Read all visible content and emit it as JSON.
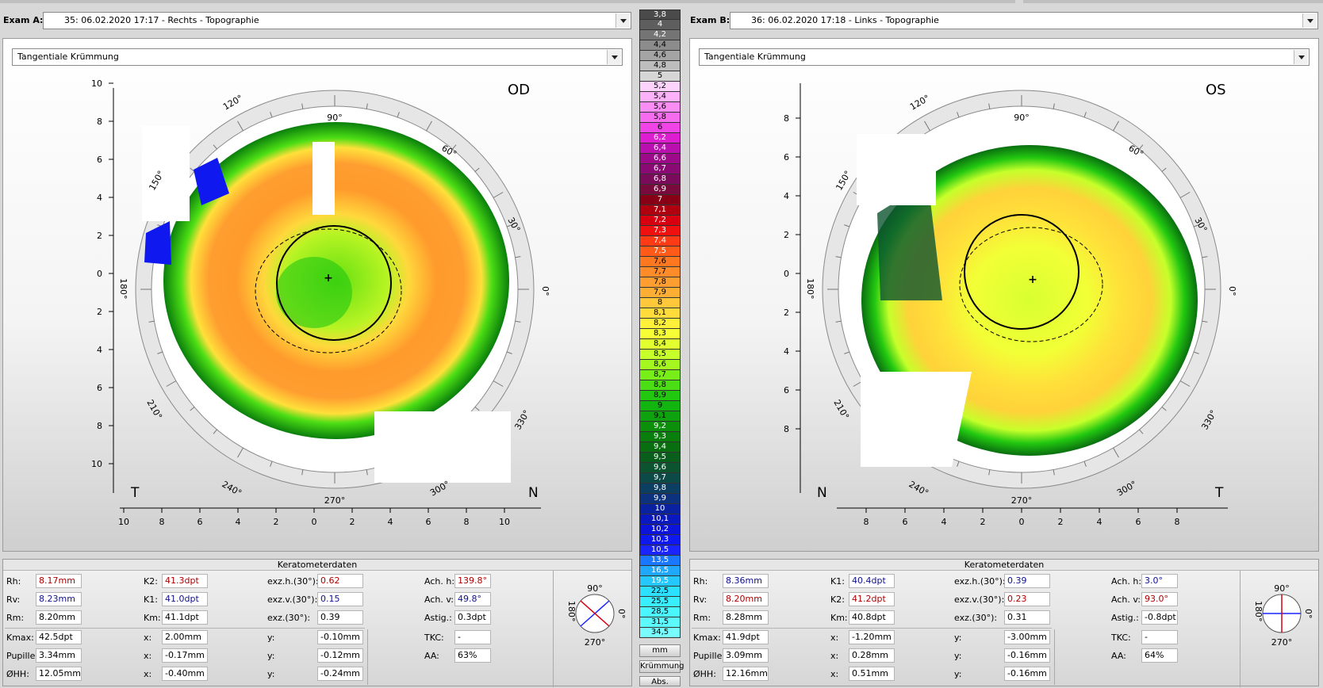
{
  "exam_a": {
    "label": "Exam A:",
    "value": "35: 06.02.2020 17:17 - Rechts - Topographie",
    "mode": "Tangentiale Krümmung",
    "eye": "OD",
    "left_corner": "T",
    "right_corner": "N",
    "y_ticks": [
      "10",
      "8",
      "6",
      "4",
      "2",
      "0",
      "2",
      "4",
      "6",
      "8",
      "10"
    ],
    "x_ticks": [
      "10",
      "8",
      "6",
      "4",
      "2",
      "0",
      "2",
      "4",
      "6",
      "8",
      "10"
    ],
    "angles": {
      "a90": "90°",
      "a60": "60°",
      "a30": "30°",
      "a0": "0°",
      "a330": "330°",
      "a300": "300°",
      "a270": "270°",
      "a240": "240°",
      "a210": "210°",
      "a180": "180°",
      "a150": "150°",
      "a120": "120°"
    }
  },
  "exam_b": {
    "label": "Exam B:",
    "value": "36: 06.02.2020 17:18 - Links - Topographie",
    "mode": "Tangentiale Krümmung",
    "eye": "OS",
    "left_corner": "N",
    "right_corner": "T",
    "y_ticks": [
      "8",
      "6",
      "4",
      "2",
      "0",
      "2",
      "4",
      "6",
      "8"
    ],
    "x_ticks": [
      "8",
      "6",
      "4",
      "2",
      "0",
      "2",
      "4",
      "6",
      "8"
    ],
    "angles": {
      "a90": "90°",
      "a60": "60°",
      "a30": "30°",
      "a0": "0°",
      "a330": "330°",
      "a300": "300°",
      "a270": "270°",
      "a240": "240°",
      "a210": "210°",
      "a180": "180°",
      "a150": "150°",
      "a120": "120°"
    }
  },
  "scale": {
    "items": [
      {
        "v": "3,8",
        "c": "#4a4a4a",
        "t": "#fff"
      },
      {
        "v": "4",
        "c": "#5e5e5e",
        "t": "#fff"
      },
      {
        "v": "4,2",
        "c": "#747474",
        "t": "#fff"
      },
      {
        "v": "4,4",
        "c": "#8c8c8c",
        "t": "#000"
      },
      {
        "v": "4,6",
        "c": "#a4a4a4",
        "t": "#000"
      },
      {
        "v": "4,8",
        "c": "#bdbdbd",
        "t": "#000"
      },
      {
        "v": "5",
        "c": "#d6d6d6",
        "t": "#000"
      },
      {
        "v": "5,2",
        "c": "#fbd3fb",
        "t": "#000"
      },
      {
        "v": "5,4",
        "c": "#fbb2f8",
        "t": "#000"
      },
      {
        "v": "5,6",
        "c": "#f98df3",
        "t": "#000"
      },
      {
        "v": "5,8",
        "c": "#f66cef",
        "t": "#000"
      },
      {
        "v": "6",
        "c": "#f044e6",
        "t": "#000"
      },
      {
        "v": "6,2",
        "c": "#dc1ed0",
        "t": "#fff"
      },
      {
        "v": "6,4",
        "c": "#b80fae",
        "t": "#fff"
      },
      {
        "v": "6,6",
        "c": "#9c0a8a",
        "t": "#fff"
      },
      {
        "v": "6,7",
        "c": "#8a0a74",
        "t": "#fff"
      },
      {
        "v": "6,8",
        "c": "#7a0a5a",
        "t": "#fff"
      },
      {
        "v": "6,9",
        "c": "#780a3c",
        "t": "#fff"
      },
      {
        "v": "7",
        "c": "#880016",
        "t": "#fff"
      },
      {
        "v": "7,1",
        "c": "#b00010",
        "t": "#fff"
      },
      {
        "v": "7,2",
        "c": "#d80010",
        "t": "#fff"
      },
      {
        "v": "7,3",
        "c": "#f01010",
        "t": "#fff"
      },
      {
        "v": "7,4",
        "c": "#ff3a14",
        "t": "#fff"
      },
      {
        "v": "7,5",
        "c": "#ff5a18",
        "t": "#fff"
      },
      {
        "v": "7,6",
        "c": "#ff7820",
        "t": "#000"
      },
      {
        "v": "7,7",
        "c": "#ff8c28",
        "t": "#000"
      },
      {
        "v": "7,8",
        "c": "#ff9e30",
        "t": "#000"
      },
      {
        "v": "7,9",
        "c": "#ffae34",
        "t": "#000"
      },
      {
        "v": "8",
        "c": "#ffc83a",
        "t": "#000"
      },
      {
        "v": "8,1",
        "c": "#ffdc3c",
        "t": "#000"
      },
      {
        "v": "8,2",
        "c": "#fff03a",
        "t": "#000"
      },
      {
        "v": "8,3",
        "c": "#f6ff36",
        "t": "#000"
      },
      {
        "v": "8,4",
        "c": "#e2ff30",
        "t": "#000"
      },
      {
        "v": "8,5",
        "c": "#c6ff2a",
        "t": "#000"
      },
      {
        "v": "8,6",
        "c": "#a4f820",
        "t": "#000"
      },
      {
        "v": "8,7",
        "c": "#78ee18",
        "t": "#000"
      },
      {
        "v": "8,8",
        "c": "#4cde14",
        "t": "#000"
      },
      {
        "v": "8,9",
        "c": "#22c810",
        "t": "#000"
      },
      {
        "v": "9",
        "c": "#12b410",
        "t": "#000"
      },
      {
        "v": "9,1",
        "c": "#0ea20e",
        "t": "#000"
      },
      {
        "v": "9,2",
        "c": "#0c900c",
        "t": "#fff"
      },
      {
        "v": "9,3",
        "c": "#0a7e0c",
        "t": "#fff"
      },
      {
        "v": "9,4",
        "c": "#086e10",
        "t": "#fff"
      },
      {
        "v": "9,5",
        "c": "#0a5e1c",
        "t": "#fff"
      },
      {
        "v": "9,6",
        "c": "#0c5430",
        "t": "#fff"
      },
      {
        "v": "9,7",
        "c": "#0c4a48",
        "t": "#fff"
      },
      {
        "v": "9,8",
        "c": "#0c3e62",
        "t": "#fff"
      },
      {
        "v": "9,9",
        "c": "#0c327e",
        "t": "#fff"
      },
      {
        "v": "10",
        "c": "#0a22a0",
        "t": "#fff"
      },
      {
        "v": "10,1",
        "c": "#0a18c0",
        "t": "#fff"
      },
      {
        "v": "10,2",
        "c": "#0c14dc",
        "t": "#fff"
      },
      {
        "v": "10,3",
        "c": "#1018f0",
        "t": "#fff"
      },
      {
        "v": "10,5",
        "c": "#1a24ff",
        "t": "#fff"
      },
      {
        "v": "13,5",
        "c": "#1a78ff",
        "t": "#fff"
      },
      {
        "v": "16,5",
        "c": "#20a8ff",
        "t": "#fff"
      },
      {
        "v": "19,5",
        "c": "#24c8ff",
        "t": "#fff"
      },
      {
        "v": "22,5",
        "c": "#2ce0ff",
        "t": "#000"
      },
      {
        "v": "25,5",
        "c": "#38eeff",
        "t": "#000"
      },
      {
        "v": "28,5",
        "c": "#4af6ff",
        "t": "#000"
      },
      {
        "v": "31,5",
        "c": "#5cfaff",
        "t": "#000"
      },
      {
        "v": "34,5",
        "c": "#78fcff",
        "t": "#000"
      }
    ],
    "unit_mm": "mm",
    "unit_kruemmung": "Krümmung",
    "unit_abs": "Abs."
  },
  "kerato_a": {
    "title": "Keratometerdaten",
    "rh_l": "Rh:",
    "rh": "8.17mm",
    "rv_l": "Rv:",
    "rv": "8.23mm",
    "rm_l": "Rm:",
    "rm": "8.20mm",
    "k_top_l": "K2:",
    "k_top": "41.3dpt",
    "k_mid_l": "K1:",
    "k_mid": "41.0dpt",
    "km_l": "Km:",
    "km": "41.1dpt",
    "exzh_l": "exz.h.(30°):",
    "exzh": "0.62",
    "exzv_l": "exz.v.(30°):",
    "exzv": "0.15",
    "exz_l": "exz.(30°):",
    "exz": "0.39",
    "achh_l": "Ach. h:",
    "achh": "139.8°",
    "achv_l": "Ach. v:",
    "achv": "49.8°",
    "astig_l": "Astig.:",
    "astig": "0.3dpt",
    "kmax_l": "Kmax:",
    "kmax": "42.5dpt",
    "kmax_x_l": "x:",
    "kmax_x": "2.00mm",
    "kmax_y_l": "y:",
    "kmax_y": "-0.10mm",
    "pup_l": "Pupille:",
    "pup": "3.34mm",
    "pup_x_l": "x:",
    "pup_x": "-0.17mm",
    "pup_y_l": "y:",
    "pup_y": "-0.12mm",
    "hh_l": "ØHH:",
    "hh": "12.05mm",
    "hh_x_l": "x:",
    "hh_x": "-0.40mm",
    "hh_y_l": "y:",
    "hh_y": "-0.24mm",
    "tkc_l": "TKC:",
    "tkc": "-",
    "aa_l": "AA:",
    "aa": "63%",
    "d90": "90°",
    "d0": "0°",
    "d180": "180°",
    "d270": "270°"
  },
  "kerato_b": {
    "title": "Keratometerdaten",
    "rh_l": "Rh:",
    "rh": "8.36mm",
    "rv_l": "Rv:",
    "rv": "8.20mm",
    "rm_l": "Rm:",
    "rm": "8.28mm",
    "k_top_l": "K1:",
    "k_top": "40.4dpt",
    "k_mid_l": "K2:",
    "k_mid": "41.2dpt",
    "km_l": "Km:",
    "km": "40.8dpt",
    "exzh_l": "exz.h.(30°):",
    "exzh": "0.39",
    "exzv_l": "exz.v.(30°):",
    "exzv": "0.23",
    "exz_l": "exz.(30°):",
    "exz": "0.31",
    "achh_l": "Ach. h:",
    "achh": "3.0°",
    "achv_l": "Ach. v:",
    "achv": "93.0°",
    "astig_l": "Astig.:",
    "astig": "-0.8dpt",
    "kmax_l": "Kmax:",
    "kmax": "41.9dpt",
    "kmax_x_l": "x:",
    "kmax_x": "-1.20mm",
    "kmax_y_l": "y:",
    "kmax_y": "-3.00mm",
    "pup_l": "Pupille:",
    "pup": "3.09mm",
    "pup_x_l": "x:",
    "pup_x": "0.28mm",
    "pup_y_l": "y:",
    "pup_y": "-0.16mm",
    "hh_l": "ØHH:",
    "hh": "12.16mm",
    "hh_x_l": "x:",
    "hh_x": "0.51mm",
    "hh_y_l": "y:",
    "hh_y": "-0.16mm",
    "tkc_l": "TKC:",
    "tkc": "-",
    "aa_l": "AA:",
    "aa": "64%",
    "d90": "90°",
    "d0": "0°",
    "d180": "180°",
    "d270": "270°"
  },
  "colors": {
    "red_value": "#b00000",
    "blue_value": "#101090"
  }
}
